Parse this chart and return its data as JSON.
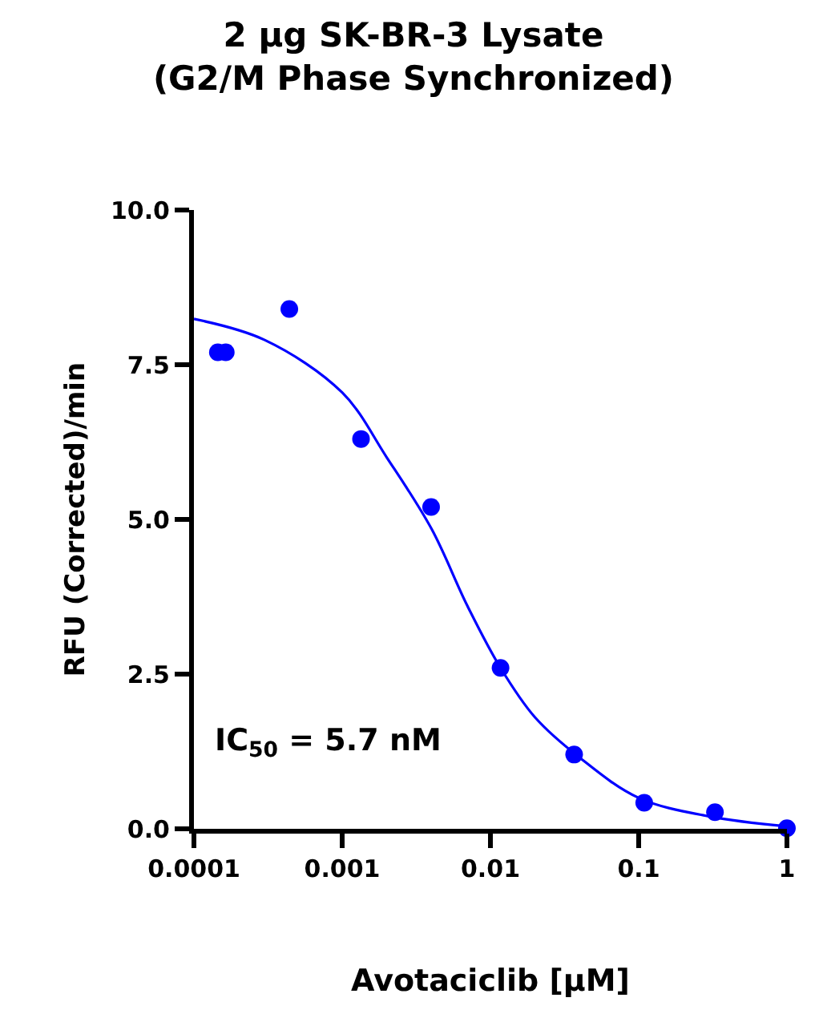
{
  "chart_data": {
    "type": "scatter",
    "title": "2 µg SK-BR-3 Lysate\n(G2/M Phase Synchronized)",
    "xlabel": "Avotaciclib [µM]",
    "ylabel": "RFU (Corrected)/min",
    "annotations": [
      "IC$_{50}$ = 5.7 nM"
    ],
    "series": [
      {
        "color": "#0000ff",
        "marker": "circle",
        "x": [
          0.000145,
          0.000164,
          0.00044,
          0.00134,
          0.00398,
          0.0117,
          0.0367,
          0.109,
          0.327,
          1
        ],
        "values": [
          7.7,
          7.7,
          8.4,
          6.3,
          5.2,
          2.6,
          1.2,
          0.42,
          0.27,
          0.01
        ]
      },
      {
        "type": "line",
        "color": "#0000ff",
        "marker": "none",
        "line_style": "solid",
        "x": [
          0.0001,
          0.0003,
          0.001,
          0.002,
          0.004,
          0.007,
          0.0117,
          0.02,
          0.04,
          0.1,
          0.3,
          1
        ],
        "values": [
          8.24,
          7.9,
          7.05,
          6.0,
          4.85,
          3.6,
          2.6,
          1.8,
          1.15,
          0.5,
          0.2,
          0.04
        ]
      }
    ],
    "log": "x",
    "xlim": [
      0.0001,
      1
    ],
    "ylim": [
      0,
      10
    ],
    "xticks": [
      0.0001,
      0.001,
      0.01,
      0.1,
      1
    ],
    "yticks": [
      {
        "value": 0,
        "label": "0.0"
      },
      {
        "value": 2.5,
        "label": "2.5"
      },
      {
        "value": 5,
        "label": "5.0"
      },
      {
        "value": 7.5,
        "label": "7.5"
      },
      {
        "value": 10,
        "label": "10.0"
      }
    ]
  }
}
